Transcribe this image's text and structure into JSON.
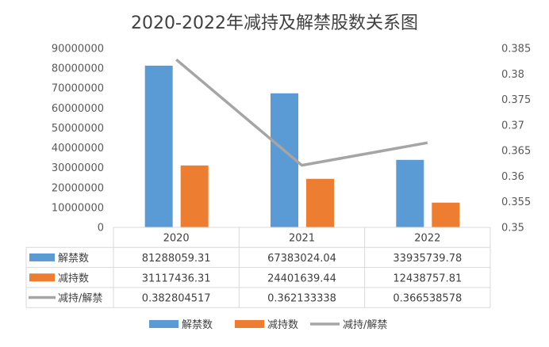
{
  "chart_data": {
    "type": "bar",
    "title": "2020-2022年减持及解禁股数关系图",
    "categories": [
      "2020",
      "2021",
      "2022"
    ],
    "series": [
      {
        "name": "解禁数",
        "type": "bar",
        "axis": "left",
        "color": "#5B9BD5",
        "values": [
          81288059.31,
          67383024.04,
          33935739.78
        ],
        "labels": [
          "81288059.31",
          "67383024.04",
          "33935739.78"
        ]
      },
      {
        "name": "减持数",
        "type": "bar",
        "axis": "left",
        "color": "#ED7D31",
        "values": [
          31117436.31,
          24401639.44,
          12438757.81
        ],
        "labels": [
          "31117436.31",
          "24401639.44",
          "12438757.81"
        ]
      },
      {
        "name": "减持/解禁",
        "type": "line",
        "axis": "right",
        "color": "#A5A5A5",
        "values": [
          0.382804517,
          0.362133338,
          0.366538578
        ],
        "labels": [
          "0.382804517",
          "0.362133338",
          "0.366538578"
        ]
      }
    ],
    "y_left": {
      "min": 0,
      "max": 90000000,
      "step": 10000000,
      "ticks": [
        "0",
        "10000000",
        "20000000",
        "30000000",
        "40000000",
        "50000000",
        "60000000",
        "70000000",
        "80000000",
        "90000000"
      ]
    },
    "y_right": {
      "min": 0.35,
      "max": 0.385,
      "step": 0.005,
      "ticks": [
        "0.35",
        "0.355",
        "0.36",
        "0.365",
        "0.37",
        "0.375",
        "0.38",
        "0.385"
      ]
    },
    "grid": false,
    "legend_position": "bottom",
    "data_table": true
  }
}
